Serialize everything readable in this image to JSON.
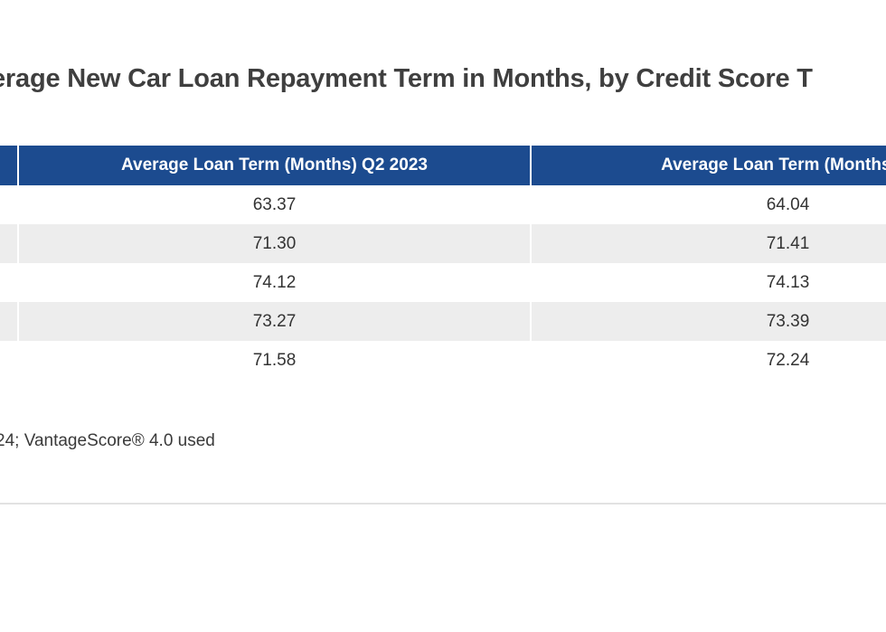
{
  "chart_data": {
    "type": "table",
    "title": "erage New Car Loan Repayment Term in Months, by Credit Score T",
    "columns": [
      "",
      "Average Loan Term (Months) Q2 2023",
      "Average Loan Term (Months) Q"
    ],
    "rows": [
      [
        "",
        "63.37",
        "64.04"
      ],
      [
        "",
        "71.30",
        "71.41"
      ],
      [
        "",
        "74.12",
        "74.13"
      ],
      [
        "",
        "73.27",
        "73.39"
      ],
      [
        "",
        "71.58",
        "72.24"
      ]
    ],
    "source_note": "24; VantageScore® 4.0 used",
    "colors": {
      "header_background": "#1c4b8f",
      "header_text": "#ffffff",
      "row_stripe": "#ededed",
      "title_text": "#3f3f3f"
    }
  }
}
